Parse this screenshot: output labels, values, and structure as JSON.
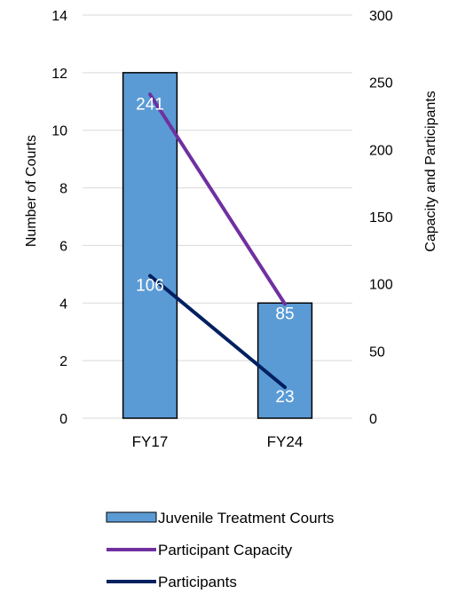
{
  "chart_data": {
    "type": "bar",
    "categories": [
      "FY17",
      "FY24"
    ],
    "left_axis": {
      "label": "Number of Courts",
      "ylim": [
        0,
        14
      ],
      "ticks": [
        "0",
        "2",
        "4",
        "6",
        "8",
        "10",
        "12",
        "14"
      ]
    },
    "right_axis": {
      "label": "Capacity and Participants",
      "ylim": [
        0,
        300
      ],
      "ticks": [
        "0",
        "50",
        "100",
        "150",
        "200",
        "250",
        "300"
      ]
    },
    "series": [
      {
        "name": "Juvenile Treatment Courts",
        "kind": "bar",
        "axis": "left",
        "values": [
          12,
          4
        ],
        "color": "#5B9BD5",
        "labels": [
          "",
          ""
        ]
      },
      {
        "name": "Participant Capacity",
        "kind": "line",
        "axis": "right",
        "values": [
          241,
          85
        ],
        "color": "#7030A0",
        "labels": [
          "241",
          "85"
        ]
      },
      {
        "name": "Participants",
        "kind": "line",
        "axis": "right",
        "values": [
          106,
          23
        ],
        "color": "#002060",
        "labels": [
          "106",
          "23"
        ]
      }
    ],
    "legend_position": "bottom",
    "grid": true
  }
}
